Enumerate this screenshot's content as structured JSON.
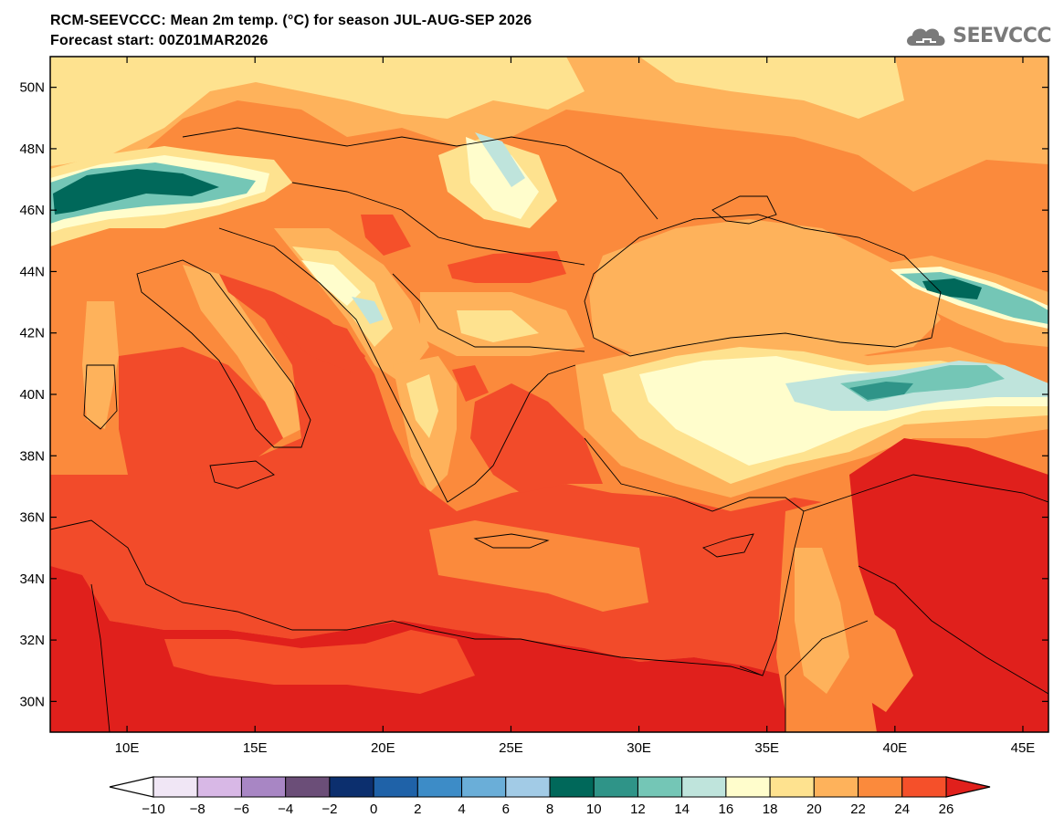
{
  "title": {
    "line1": "RCM-SEEVCCC: Mean 2m temp. (°C) for season JUL-AUG-SEP 2026",
    "line2": "Forecast start: 00Z01MAR2026"
  },
  "logo": {
    "text": "SEEVCCC",
    "icon": "cloud-icon",
    "color": "#7a7a7a"
  },
  "map": {
    "lon_range": [
      7,
      46
    ],
    "lat_range": [
      29,
      51
    ],
    "lat_ticks": [
      {
        "value": 50,
        "label": "50N"
      },
      {
        "value": 48,
        "label": "48N"
      },
      {
        "value": 46,
        "label": "46N"
      },
      {
        "value": 44,
        "label": "44N"
      },
      {
        "value": 42,
        "label": "42N"
      },
      {
        "value": 40,
        "label": "40N"
      },
      {
        "value": 38,
        "label": "38N"
      },
      {
        "value": 36,
        "label": "36N"
      },
      {
        "value": 34,
        "label": "34N"
      },
      {
        "value": 32,
        "label": "32N"
      },
      {
        "value": 30,
        "label": "30N"
      }
    ],
    "lon_ticks": [
      {
        "value": 10,
        "label": "10E"
      },
      {
        "value": 15,
        "label": "15E"
      },
      {
        "value": 20,
        "label": "20E"
      },
      {
        "value": 25,
        "label": "25E"
      },
      {
        "value": 30,
        "label": "30E"
      },
      {
        "value": 35,
        "label": "35E"
      },
      {
        "value": 40,
        "label": "40E"
      },
      {
        "value": 45,
        "label": "45E"
      }
    ]
  },
  "colorbar": {
    "labels": [
      "-10",
      "-8",
      "-6",
      "-4",
      "-2",
      "0",
      "2",
      "4",
      "6",
      "8",
      "10",
      "12",
      "14",
      "16",
      "18",
      "20",
      "22",
      "24",
      "26"
    ],
    "below_color": "#ffffff",
    "above_color": "#e0201c",
    "colors": [
      "#f0e6f5",
      "#d8b8e6",
      "#a886c4",
      "#6b4e78",
      "#0c2f6e",
      "#1f62a8",
      "#3d8cc7",
      "#6aaed8",
      "#a2cbe6",
      "#00685a",
      "#2f9488",
      "#74c6b6",
      "#bfe4dc",
      "#fffdcc",
      "#fee28f",
      "#feb25b",
      "#fb8a3c",
      "#f5502a"
    ]
  },
  "palette": {
    "sea_hot": "#f24b2a",
    "land_hot": "#e0201c",
    "warm": "#fb8a3c",
    "mild": "#feb25b",
    "cool": "#fee28f",
    "cooler": "#fffdcc",
    "cold1": "#bfe4dc",
    "cold2": "#74c6b6",
    "cold3": "#2f9488",
    "cold4": "#00685a"
  }
}
